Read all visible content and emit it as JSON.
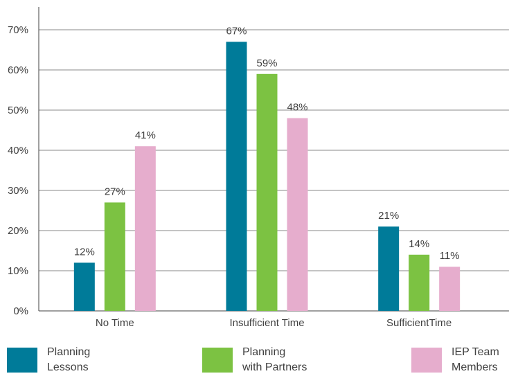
{
  "chart_data": {
    "type": "bar",
    "categories": [
      "No Time",
      "Insufficient Time",
      "SufficientTime"
    ],
    "series": [
      {
        "name": "Planning Lessons",
        "legend_lines": [
          "Planning",
          "Lessons"
        ],
        "color": "#007b99",
        "values": [
          12,
          67,
          21
        ],
        "labels": [
          "12%",
          "67%",
          "21%"
        ]
      },
      {
        "name": "Planning with Partners",
        "legend_lines": [
          "Planning",
          "with Partners"
        ],
        "color": "#7cc242",
        "values": [
          27,
          59,
          14
        ],
        "labels": [
          "27%",
          "59%",
          "14%"
        ]
      },
      {
        "name": "IEP Team Members",
        "legend_lines": [
          "IEP Team",
          "Members"
        ],
        "color": "#e6adcd",
        "values": [
          41,
          48,
          11
        ],
        "labels": [
          "41%",
          "48%",
          "11%"
        ]
      }
    ],
    "y_ticks": [
      "0%",
      "10%",
      "20%",
      "30%",
      "40%",
      "50%",
      "60%",
      "70%"
    ],
    "ylim": [
      0,
      70
    ],
    "grid": true,
    "legend_position": "bottom"
  }
}
